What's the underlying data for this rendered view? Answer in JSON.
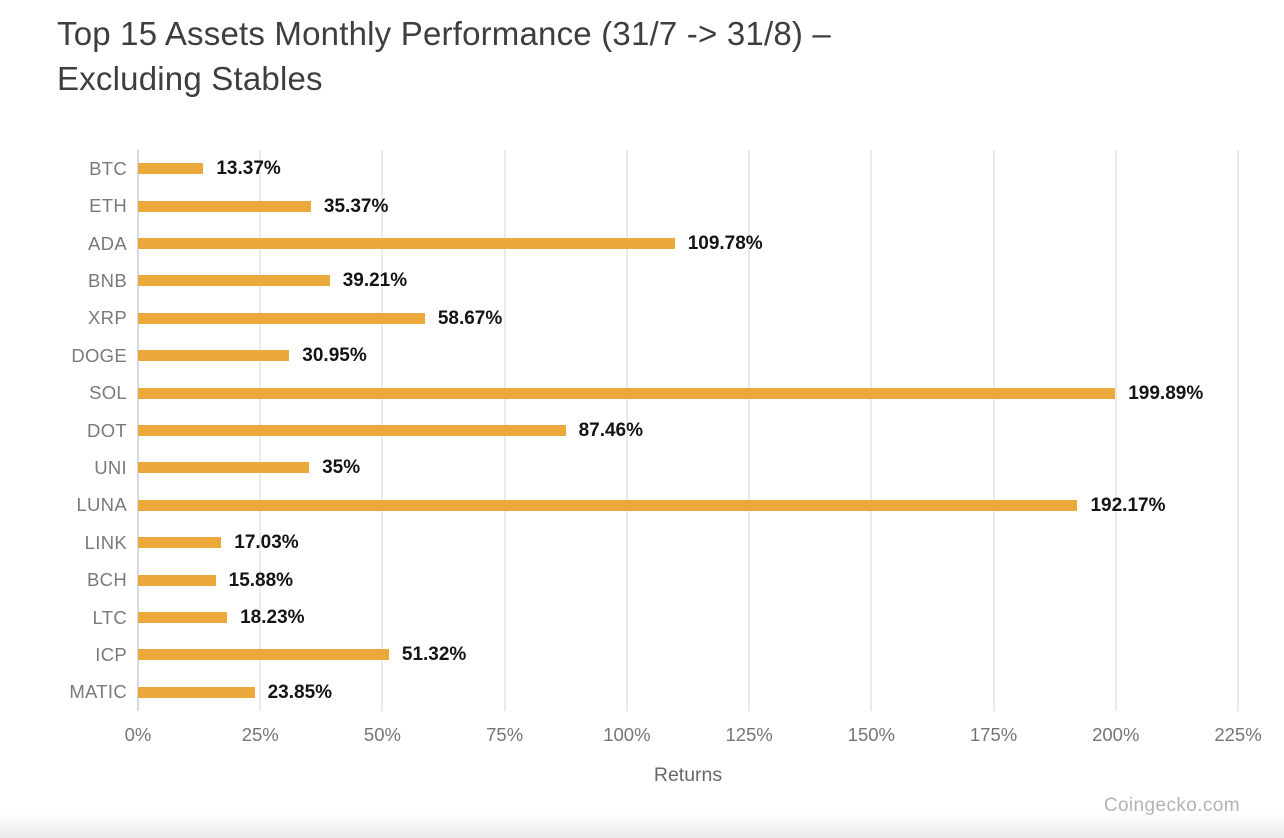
{
  "header": {
    "title_line1": "Top 15 Assets Monthly Performance (31/7 -> 31/8) –",
    "title_line2": "Excluding Stables"
  },
  "chart_data": {
    "type": "bar",
    "orientation": "horizontal",
    "title": "Top 15 Assets Monthly Performance (31/7 -> 31/8) – Excluding Stables",
    "categories": [
      "BTC",
      "ETH",
      "ADA",
      "BNB",
      "XRP",
      "DOGE",
      "SOL",
      "DOT",
      "UNI",
      "LUNA",
      "LINK",
      "BCH",
      "LTC",
      "ICP",
      "MATIC"
    ],
    "values": [
      13.37,
      35.37,
      109.78,
      39.21,
      58.67,
      30.95,
      199.89,
      87.46,
      35,
      192.17,
      17.03,
      15.88,
      18.23,
      51.32,
      23.85
    ],
    "value_labels": [
      "13.37%",
      "35.37%",
      "109.78%",
      "39.21%",
      "58.67%",
      "30.95%",
      "199.89%",
      "87.46%",
      "35%",
      "192.17%",
      "17.03%",
      "15.88%",
      "18.23%",
      "51.32%",
      "23.85%"
    ],
    "xlabel": "Returns",
    "x_ticks": [
      "0%",
      "25%",
      "50%",
      "75%",
      "100%",
      "125%",
      "150%",
      "175%",
      "200%",
      "225%"
    ],
    "x_tick_values": [
      0,
      25,
      50,
      75,
      100,
      125,
      150,
      175,
      200,
      225
    ],
    "xlim": [
      0,
      225
    ],
    "grid": "vertical",
    "legend": "none",
    "bar_color": "#ECA93B"
  },
  "attribution": "Coingecko.com",
  "colors": {
    "background": "#FFFFFF",
    "bar": "#ECA93B",
    "title_text": "#3E3E3E",
    "category_text": "#7A7A7A",
    "value_text": "#141414",
    "tick_text": "#757575",
    "xlabel_text": "#686868",
    "axis_line": "#D4DBE6",
    "gridline": "#EAEAEA",
    "attribution_text": "#B3B3B3"
  }
}
